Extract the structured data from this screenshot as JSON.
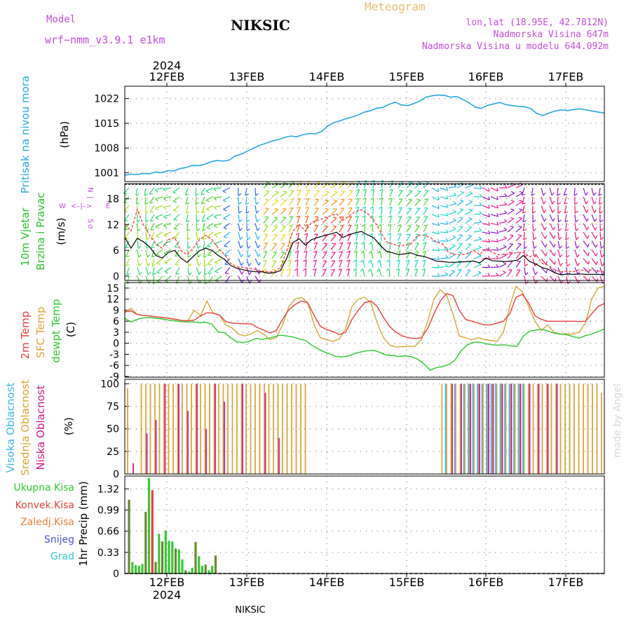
{
  "header": {
    "model_label": "Model",
    "model_name": "wrf−nmm_v3.9.1  e1km",
    "station": "NIKSIC",
    "product": "Meteogram",
    "lonlat": "lon,lat (18.95E, 42.7812N)",
    "elevation": "Nadmorska Visina 647m",
    "model_elevation": "Nadmorska Visina u modelu 644.092m",
    "watermark": "made by Angel",
    "footer_station": "NIKSIC"
  },
  "time_axis": {
    "top_year": "2024",
    "bottom_year": "2024",
    "days": [
      "12FEB",
      "13FEB",
      "14FEB",
      "15FEB",
      "16FEB",
      "17FEB"
    ]
  },
  "colors": {
    "pressure": "#2aa8e0",
    "temp_2m": "#e84040",
    "temp_sfc": "#d8a838",
    "dewpoint": "#30c830",
    "cloud_high": "#40b8e8",
    "cloud_mid": "#d8a838",
    "cloud_low": "#d81888",
    "precip_total": "#38c838",
    "precip_conv": "#e84040",
    "precip_snow": "#5050e0",
    "precip_grid": "#30c8c8",
    "precip_bar": "#6a8a2a",
    "wind_label": "#30c030",
    "compass": "#c050d8"
  },
  "chart_data": [
    {
      "type": "line",
      "panel": "pressure",
      "ylabel": [
        "Pritisak na nivou mora"
      ],
      "unit": "(hPa)",
      "yticks": [
        1001,
        1008,
        1015,
        1022
      ],
      "ylim": [
        998.5,
        1025.5
      ],
      "grid": true,
      "series": [
        {
          "values": [
            1000.3,
            1000.6,
            1000.5,
            1000.8,
            1000.7,
            1001.2,
            1001.0,
            1001.6,
            1001.5,
            1002.2,
            1002.5,
            1003.1,
            1003.0,
            1003.4,
            1004.1,
            1004.5,
            1004.3,
            1004.6,
            1005.8,
            1006.3,
            1007.2,
            1008.0,
            1008.8,
            1009.4,
            1010.0,
            1010.4,
            1011.0,
            1011.4,
            1011.2,
            1011.8,
            1012.1,
            1012.0,
            1012.7,
            1014.2,
            1015.2,
            1015.7,
            1016.3,
            1016.8,
            1017.4,
            1018.2,
            1018.6,
            1019.3,
            1019.5,
            1020.4,
            1021.0,
            1020.2,
            1020.0,
            1020.6,
            1021.3,
            1022.4,
            1022.8,
            1023.0,
            1022.9,
            1022.4,
            1022.6,
            1021.7,
            1020.8,
            1019.6,
            1019.2,
            1020.1,
            1020.5,
            1020.9,
            1020.3,
            1020.0,
            1019.8,
            1019.7,
            1019.2,
            1017.8,
            1017.2,
            1017.9,
            1018.5,
            1018.8,
            1018.6,
            1018.9,
            1019.1,
            1018.8,
            1018.5,
            1018.2,
            1017.9
          ]
        }
      ]
    },
    {
      "type": "line",
      "panel": "wind",
      "ylabel": [
        "10m Vjetar",
        "Brzina i Pravac"
      ],
      "unit": "(m/s)",
      "compass": [
        "W",
        "<–|–>",
        "E",
        "N",
        "|",
        "S",
        "σ"
      ],
      "yticks": [
        0,
        6,
        12,
        18
      ],
      "ylim": [
        -1,
        21.5
      ],
      "grid": true,
      "series": [
        {
          "name": "speed",
          "values": [
            9.0,
            6.5,
            8.8,
            8.0,
            6.8,
            4.8,
            4.2,
            5.5,
            6.0,
            4.2,
            3.2,
            4.6,
            5.9,
            6.5,
            6.0,
            4.8,
            3.9,
            2.5,
            1.8,
            1.5,
            1.2,
            1.0,
            1.0,
            0.7,
            0.8,
            1.3,
            4.2,
            7.8,
            8.7,
            7.2,
            8.5,
            9.0,
            9.4,
            9.8,
            10.2,
            9.0,
            9.6,
            10.1,
            10.4,
            9.6,
            8.9,
            7.2,
            5.8,
            5.4,
            5.0,
            5.2,
            5.4,
            4.8,
            4.6,
            4.1,
            3.5,
            3.4,
            3.2,
            3.2,
            3.3,
            3.4,
            3.5,
            3.1,
            4.2,
            3.6,
            3.5,
            3.4,
            3.5,
            3.7,
            4.8,
            3.4,
            2.8,
            2.0,
            1.6,
            0.8,
            0.3,
            0.5,
            0.4,
            0.5,
            0.4,
            0.4,
            0.4,
            0.3
          ]
        },
        {
          "name": "gust",
          "values": [
            12.0,
            10.5,
            15.5,
            12.0,
            9.5,
            7.5,
            6.5,
            8.5,
            9.0,
            6.0,
            5.0,
            6.5,
            8.5,
            9.5,
            8.5,
            6.5,
            5.0,
            3.0,
            2.2,
            2.0,
            1.8,
            1.5,
            1.2,
            1.0,
            1.0,
            2.0,
            6.0,
            10.5,
            12.0,
            10.5,
            12.5,
            13.0,
            13.5,
            14.0,
            14.5,
            13.0,
            14.0,
            15.0,
            15.5,
            14.5,
            13.0,
            10.5,
            8.0,
            7.5,
            7.0,
            7.2,
            7.5,
            9.5,
            9.5,
            9.0,
            8.0,
            7.5,
            5.5,
            5.0,
            5.0,
            5.2,
            6.0,
            5.0,
            6.5,
            5.5,
            5.0,
            5.0,
            5.2,
            5.5,
            5.5,
            4.5,
            5.0,
            3.0,
            2.5,
            1.5,
            1.0,
            1.2,
            1.0,
            1.5,
            1.2,
            1.5,
            1.2,
            1.0
          ]
        }
      ]
    },
    {
      "type": "line",
      "panel": "temperature",
      "ylabel": [
        "2m Temp",
        "SFC Temp",
        "dewpt Temp"
      ],
      "unit": "(C)",
      "yticks": [
        -9,
        -6,
        -3,
        0,
        3,
        6,
        9,
        12,
        15
      ],
      "ylim": [
        -9.2,
        16.5
      ],
      "grid": true,
      "series": [
        {
          "name": "2m Temp",
          "values": [
            8.5,
            8.8,
            7.8,
            7.6,
            7.4,
            7.2,
            7.0,
            6.8,
            6.5,
            6.2,
            6.1,
            6.3,
            7.4,
            8.3,
            8.2,
            7.7,
            5.9,
            5.5,
            5.4,
            5.3,
            5.3,
            4.3,
            3.6,
            2.8,
            3.5,
            6.5,
            9.1,
            10.5,
            11.5,
            11.0,
            7.6,
            4.6,
            3.7,
            3.2,
            2.4,
            3.0,
            6.5,
            9.0,
            11.0,
            11.5,
            10.0,
            7.0,
            4.5,
            3.0,
            2.0,
            1.5,
            1.3,
            1.5,
            4.0,
            8.0,
            11.5,
            13.5,
            13.0,
            9.0,
            6.5,
            6.0,
            5.5,
            5.0,
            5.0,
            5.5,
            6.0,
            8.0,
            12.5,
            13.3,
            11.0,
            7.5,
            6.5,
            6.0,
            6.0,
            6.0,
            6.0,
            6.0,
            5.9,
            6.0,
            8.0,
            10.0,
            10.8
          ]
        },
        {
          "name": "SFC Temp",
          "values": [
            8.5,
            9.5,
            7.8,
            7.6,
            7.4,
            7.2,
            7.0,
            6.8,
            6.5,
            6.2,
            6.1,
            9.0,
            7.5,
            11.5,
            8.2,
            7.7,
            5.0,
            4.2,
            2.5,
            2.0,
            2.5,
            3.5,
            2.5,
            1.0,
            1.5,
            5.0,
            10.0,
            12.0,
            12.5,
            11.0,
            5.0,
            1.5,
            1.0,
            0.5,
            1.2,
            4.0,
            10.0,
            12.0,
            12.5,
            11.0,
            5.5,
            1.5,
            -0.5,
            -1.0,
            -0.9,
            -0.8,
            -0.8,
            1.0,
            6.0,
            12.0,
            14.5,
            13.0,
            8.0,
            2.0,
            1.5,
            1.0,
            1.5,
            1.0,
            0.8,
            0.5,
            3.0,
            10.0,
            15.5,
            14.0,
            10.0,
            6.0,
            3.5,
            5.0,
            3.0,
            2.5,
            2.5,
            2.5,
            3.0,
            5.5,
            12.0,
            15.0,
            15.5
          ]
        },
        {
          "name": "dewpt Temp",
          "values": [
            6.8,
            5.8,
            6.5,
            6.9,
            7.0,
            6.8,
            6.6,
            6.3,
            6.1,
            5.9,
            5.8,
            5.8,
            5.6,
            5.7,
            5.2,
            3.1,
            2.9,
            1.5,
            0.4,
            0.2,
            0.5,
            1.3,
            1.1,
            1.3,
            1.8,
            2.2,
            2.0,
            1.7,
            1.2,
            0.8,
            -0.5,
            -1.5,
            -2.3,
            -3.0,
            -3.6,
            -3.7,
            -3.4,
            -2.7,
            -2.3,
            -2.0,
            -1.9,
            -2.5,
            -3.2,
            -3.3,
            -3.6,
            -3.4,
            -3.6,
            -4.3,
            -5.5,
            -7.3,
            -6.6,
            -6.3,
            -5.8,
            -4.6,
            -2.0,
            -0.4,
            0.3,
            0.3,
            -0.1,
            -0.4,
            -0.5,
            -0.4,
            -0.7,
            -0.8,
            2.0,
            3.3,
            3.6,
            3.8,
            3.3,
            2.7,
            2.5,
            2.3,
            1.8,
            1.4,
            2.1,
            2.5,
            3.2,
            3.9
          ]
        }
      ]
    },
    {
      "type": "bar",
      "panel": "clouds",
      "ylabel": [
        "Visoka Oblacnost",
        "Srednja Oblacnost",
        "Niska Oblacnost"
      ],
      "unit": "(%)",
      "yticks": [
        0,
        25,
        50,
        75,
        100
      ],
      "ylim": [
        0,
        105
      ],
      "grid": true,
      "series": [
        {
          "name": "Visoka Oblacnost",
          "values": [
            0,
            0,
            0,
            0,
            0,
            0,
            0,
            0,
            0,
            0,
            0,
            0,
            0,
            0,
            0,
            0,
            0,
            0,
            0,
            0,
            0,
            0,
            0,
            0,
            0,
            0,
            0,
            0,
            0,
            0,
            0,
            0,
            0,
            0,
            0,
            0,
            0,
            0,
            0,
            0,
            0,
            0,
            0,
            0,
            0,
            0,
            0,
            0,
            0,
            0,
            0,
            0,
            0,
            0,
            0,
            0,
            0,
            0,
            0,
            0,
            0,
            0,
            0,
            0,
            0,
            0,
            0,
            0,
            0,
            0,
            100,
            0,
            100,
            0,
            100,
            100,
            100,
            100,
            100,
            100,
            100,
            100,
            100,
            100,
            100,
            100,
            100,
            100,
            0,
            0,
            0,
            0,
            0,
            0,
            0,
            0,
            0,
            0,
            0,
            0,
            0,
            0,
            0,
            0,
            0
          ]
        },
        {
          "name": "Srednja Oblacnost",
          "values": [
            95,
            0,
            0,
            100,
            100,
            100,
            100,
            100,
            100,
            100,
            100,
            100,
            100,
            100,
            100,
            100,
            100,
            100,
            100,
            100,
            100,
            100,
            100,
            100,
            100,
            100,
            100,
            100,
            100,
            100,
            100,
            100,
            100,
            100,
            100,
            100,
            100,
            100,
            100,
            100,
            0,
            0,
            0,
            0,
            0,
            0,
            0,
            0,
            0,
            0,
            0,
            0,
            0,
            0,
            0,
            0,
            0,
            0,
            0,
            0,
            0,
            0,
            0,
            0,
            0,
            0,
            0,
            0,
            0,
            100,
            100,
            100,
            100,
            100,
            100,
            100,
            100,
            100,
            100,
            100,
            100,
            100,
            100,
            100,
            100,
            100,
            100,
            100,
            100,
            100,
            100,
            100,
            100,
            100,
            100,
            100,
            100,
            100,
            100,
            100,
            100,
            100,
            100,
            100,
            90
          ]
        },
        {
          "name": "Niska Oblacnost",
          "values": [
            0,
            12,
            0,
            0,
            45,
            0,
            60,
            0,
            100,
            0,
            0,
            100,
            0,
            70,
            0,
            100,
            0,
            50,
            0,
            100,
            0,
            80,
            0,
            0,
            0,
            100,
            0,
            0,
            0,
            0,
            90,
            0,
            0,
            40,
            0,
            0,
            0,
            0,
            0,
            0,
            0,
            0,
            0,
            0,
            0,
            0,
            0,
            0,
            0,
            0,
            0,
            0,
            0,
            0,
            0,
            0,
            0,
            0,
            0,
            0,
            0,
            0,
            0,
            0,
            0,
            0,
            0,
            0,
            0,
            0,
            0,
            100,
            0,
            100,
            0,
            100,
            0,
            100,
            0,
            100,
            100,
            0,
            100,
            0,
            100,
            0,
            100,
            0,
            100,
            0,
            100,
            0,
            100,
            0,
            100,
            0,
            0,
            0,
            0,
            0,
            0,
            0,
            0,
            0,
            0
          ]
        }
      ]
    },
    {
      "type": "bar",
      "panel": "precipitation",
      "legend": [
        "Ukupna Kisa",
        "Konvek.Kisa",
        "Zaledj.Kisa",
        "Snijeg",
        "Grad"
      ],
      "ylabel": [
        "1hr Precip (mm)"
      ],
      "yticks": [
        0,
        0.33,
        0.66,
        0.99,
        1.32
      ],
      "ylim": [
        0,
        1.52
      ],
      "grid": true,
      "series": [
        {
          "name": "Ukupna Kisa",
          "values": [
            1.15,
            0.18,
            0.13,
            0.12,
            0.15,
            0.96,
            1.49,
            0.75,
            0.18,
            0.62,
            0.5,
            0.67,
            0.51,
            0.5,
            0.39,
            0.38,
            0.22,
            0.05,
            0.03,
            0.09,
            0.49,
            0.27,
            0.12,
            0.14,
            0.05,
            0.12,
            0.28
          ]
        },
        {
          "name": "Konvek.Kisa",
          "values": [
            0,
            0,
            0,
            0,
            0,
            0,
            0,
            1.3,
            0,
            0,
            0,
            0,
            0,
            0,
            0,
            0,
            0,
            0,
            0,
            0,
            0,
            0,
            0,
            0,
            0,
            0,
            0
          ]
        }
      ]
    }
  ]
}
